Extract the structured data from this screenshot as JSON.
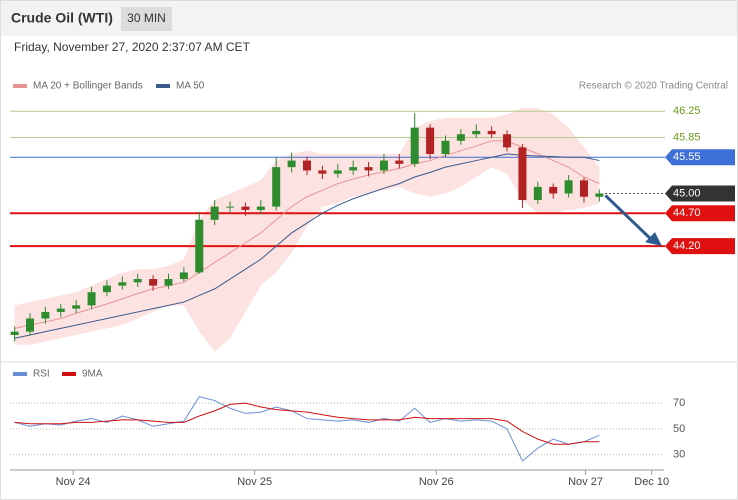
{
  "chart_data": {
    "type": "candlestick",
    "title": "Crude Oil (WTI)",
    "timeframe": "30 MIN",
    "subtitle": "Friday, November 27, 2020 2:37:07 AM CET",
    "attribution": "Research © 2020 Trading Central",
    "xlim": [
      -0.3,
      42.2
    ],
    "xticks": [
      {
        "value": 3.8,
        "label": "Nov 24"
      },
      {
        "value": 15.6,
        "label": "Nov 25"
      },
      {
        "value": 27.4,
        "label": "Nov 26"
      },
      {
        "value": 37.1,
        "label": "Nov 27"
      },
      {
        "value": 41.4,
        "label": "Dec 10"
      }
    ],
    "ylim": [
      42.5,
      46.8
    ],
    "up_color": "#2e8b2e",
    "down_color": "#b22222",
    "open": [
      42.85,
      42.9,
      43.1,
      43.2,
      43.25,
      43.3,
      43.5,
      43.6,
      43.65,
      43.7,
      43.6,
      43.7,
      43.8,
      44.6,
      44.8,
      44.8,
      44.75,
      44.8,
      45.4,
      45.5,
      45.35,
      45.3,
      45.35,
      45.4,
      45.35,
      45.5,
      45.45,
      46.0,
      45.6,
      45.8,
      45.9,
      45.95,
      45.9,
      45.7,
      44.9,
      45.1,
      45.0,
      45.2,
      44.95
    ],
    "high": [
      42.98,
      43.18,
      43.28,
      43.32,
      43.38,
      43.58,
      43.68,
      43.74,
      43.78,
      43.76,
      43.78,
      43.88,
      44.72,
      44.9,
      44.88,
      44.86,
      44.9,
      45.55,
      45.62,
      45.56,
      45.42,
      45.45,
      45.5,
      45.48,
      45.6,
      45.6,
      46.22,
      46.05,
      45.88,
      45.98,
      46.05,
      46.02,
      45.96,
      45.75,
      45.18,
      45.15,
      45.28,
      45.24,
      45.06
    ],
    "low": [
      42.75,
      42.84,
      43.02,
      43.12,
      43.18,
      43.24,
      43.44,
      43.54,
      43.58,
      43.52,
      43.55,
      43.66,
      43.78,
      44.52,
      44.7,
      44.66,
      44.68,
      44.74,
      45.32,
      45.28,
      45.22,
      45.24,
      45.28,
      45.26,
      45.3,
      45.38,
      45.4,
      45.52,
      45.55,
      45.74,
      45.84,
      45.84,
      45.64,
      44.78,
      44.84,
      44.92,
      44.94,
      44.86,
      44.88
    ],
    "close": [
      42.9,
      43.1,
      43.2,
      43.25,
      43.3,
      43.5,
      43.6,
      43.65,
      43.7,
      43.6,
      43.7,
      43.8,
      44.6,
      44.8,
      44.8,
      44.75,
      44.8,
      45.4,
      45.5,
      45.35,
      45.3,
      45.35,
      45.4,
      45.35,
      45.5,
      45.45,
      46.0,
      45.6,
      45.8,
      45.9,
      45.95,
      45.9,
      45.7,
      44.9,
      45.1,
      45.0,
      45.2,
      44.95,
      45.0
    ],
    "overlays": [
      {
        "name": "MA 20 + Bollinger Bands",
        "color": "#e89494",
        "band_color": "#fde2e2",
        "values": [
          42.95,
          43.0,
          43.05,
          43.1,
          43.18,
          43.25,
          43.32,
          43.4,
          43.48,
          43.55,
          43.6,
          43.65,
          43.8,
          43.95,
          44.1,
          44.25,
          44.4,
          44.6,
          44.8,
          44.95,
          45.05,
          45.15,
          45.22,
          45.28,
          45.33,
          45.38,
          45.45,
          45.5,
          45.58,
          45.65,
          45.72,
          45.8,
          45.8,
          45.7,
          45.6,
          45.5,
          45.4,
          45.25,
          45.15
        ],
        "upper": [
          43.3,
          43.35,
          43.4,
          43.45,
          43.5,
          43.6,
          43.7,
          43.8,
          43.85,
          43.85,
          43.9,
          44.0,
          44.6,
          44.9,
          45.0,
          45.1,
          45.2,
          45.5,
          45.6,
          45.65,
          45.6,
          45.6,
          45.6,
          45.6,
          45.6,
          45.6,
          46.0,
          46.1,
          46.15,
          46.15,
          46.15,
          46.15,
          46.2,
          46.3,
          46.3,
          46.2,
          46.0,
          45.7,
          45.4
        ],
        "lower": [
          42.7,
          42.7,
          42.75,
          42.8,
          42.85,
          42.9,
          42.95,
          43.0,
          43.1,
          43.2,
          43.3,
          43.3,
          42.9,
          42.6,
          42.8,
          43.2,
          43.6,
          43.8,
          44.1,
          44.5,
          44.8,
          44.85,
          44.95,
          45.0,
          45.05,
          45.1,
          45.0,
          44.95,
          45.0,
          45.1,
          45.25,
          45.4,
          45.3,
          44.9,
          44.7,
          44.7,
          44.75,
          44.78,
          44.85
        ]
      },
      {
        "name": "MA 50",
        "color": "#3a5a8c",
        "values": [
          42.8,
          42.85,
          42.9,
          42.95,
          43.0,
          43.05,
          43.1,
          43.15,
          43.2,
          43.25,
          43.3,
          43.35,
          43.45,
          43.55,
          43.7,
          43.85,
          44.0,
          44.2,
          44.4,
          44.55,
          44.7,
          44.82,
          44.92,
          45.0,
          45.08,
          45.15,
          45.25,
          45.32,
          45.4,
          45.45,
          45.5,
          45.55,
          45.6,
          45.58,
          45.57,
          45.56,
          45.55,
          45.55,
          45.5
        ]
      }
    ],
    "levels": [
      {
        "value": 46.25,
        "label": "46.25",
        "color": "#b5c98a",
        "text_color": "#6a9a1a",
        "boxed": false
      },
      {
        "value": 45.85,
        "label": "45.85",
        "color": "#b5c98a",
        "text_color": "#6a9a1a",
        "boxed": false
      },
      {
        "value": 45.55,
        "label": "45.55",
        "color": "#3d6fd6",
        "text_color": "#ffffff",
        "boxed": true
      },
      {
        "value": 45.0,
        "label": "45.00",
        "color": "#333333",
        "text_color": "#ffffff",
        "boxed": true
      },
      {
        "value": 44.7,
        "label": "44.70",
        "color": "#e01010",
        "text_color": "#ffffff",
        "boxed": true
      },
      {
        "value": 44.2,
        "label": "44.20",
        "color": "#e01010",
        "text_color": "#ffffff",
        "boxed": true
      }
    ],
    "rsi": {
      "ylim": [
        18,
        88
      ],
      "yticks": [
        30,
        50,
        70
      ],
      "series": [
        {
          "name": "RSI",
          "color": "#6b8fd6",
          "values": [
            55,
            52,
            54,
            53,
            56,
            58,
            55,
            60,
            57,
            52,
            54,
            56,
            75,
            72,
            66,
            62,
            63,
            67,
            64,
            58,
            57,
            56,
            57,
            55,
            58,
            56,
            66,
            55,
            58,
            56,
            57,
            56,
            50,
            25,
            35,
            42,
            38,
            40,
            45
          ]
        },
        {
          "name": "9MA",
          "color": "#d01010",
          "values": [
            55,
            54,
            54,
            54,
            55,
            55,
            56,
            57,
            57,
            56,
            55,
            55,
            60,
            64,
            69,
            70,
            67,
            65,
            64,
            63,
            61,
            59,
            58,
            57,
            57,
            57,
            59,
            58,
            58,
            58,
            58,
            58,
            56,
            48,
            42,
            38,
            38,
            40,
            40
          ]
        }
      ]
    }
  }
}
